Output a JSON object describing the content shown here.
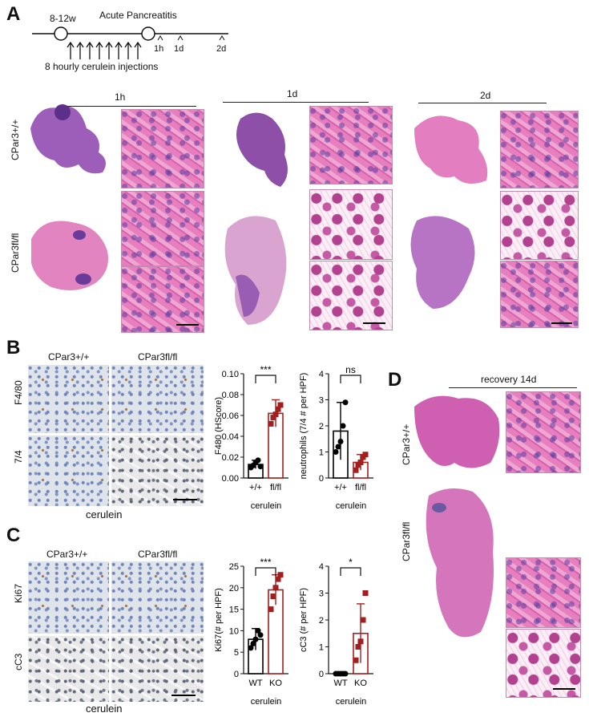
{
  "panels": {
    "a": "A",
    "b": "B",
    "c": "C",
    "d": "D"
  },
  "timeline": {
    "age": "8-12w",
    "event": "Acute Pancreatitis",
    "injections": "8 hourly cerulein injections",
    "times": [
      "1h",
      "1d",
      "2d"
    ]
  },
  "panel_a": {
    "timepoints": [
      "1h",
      "1d",
      "2d"
    ],
    "rows": [
      "CPar3+/+",
      "CPar3fl/fl"
    ]
  },
  "panel_b": {
    "columns": [
      "CPar3+/+",
      "CPar3fl/fl"
    ],
    "rows": [
      "F4/80",
      "7/4"
    ],
    "caption": "cerulein"
  },
  "panel_c": {
    "columns": [
      "CPar3+/+",
      "CPar3fl/fl"
    ],
    "rows": [
      "Ki67",
      "cC3"
    ],
    "caption": "cerulein"
  },
  "panel_d": {
    "title": "recovery 14d",
    "rows": [
      "CPar3+/+",
      "CPar3fl/fl"
    ]
  },
  "colors": {
    "control": "#000000",
    "knockout": "#a31f1f"
  },
  "chart_data": [
    {
      "type": "bar",
      "panel": "B",
      "categories": [
        "+/+",
        "fl/fl"
      ],
      "ylabel": "F480 (HScore)",
      "xlabel": "cerulein",
      "ylim": [
        0,
        0.1
      ],
      "yticks": [
        "0.00",
        "0.02",
        "0.04",
        "0.06",
        "0.08",
        "0.10"
      ],
      "values": [
        0.013,
        0.062
      ],
      "errors": [
        0.004,
        0.013
      ],
      "points": [
        [
          0.01,
          0.012,
          0.015,
          0.017,
          0.011
        ],
        [
          0.052,
          0.058,
          0.061,
          0.066,
          0.07
        ]
      ],
      "significance": "***"
    },
    {
      "type": "bar",
      "panel": "B",
      "categories": [
        "+/+",
        "fl/fl"
      ],
      "ylabel": "neutrophils (7/4 # per HPF)",
      "xlabel": "cerulein",
      "ylim": [
        0,
        4
      ],
      "yticks": [
        "0",
        "1",
        "2",
        "3",
        "4"
      ],
      "values": [
        1.8,
        0.6
      ],
      "errors": [
        1.1,
        0.3
      ],
      "points": [
        [
          1.0,
          1.2,
          1.4,
          2.0,
          2.9
        ],
        [
          0.3,
          0.5,
          0.6,
          0.8,
          0.9
        ]
      ],
      "significance": "ns"
    },
    {
      "type": "bar",
      "panel": "C",
      "categories": [
        "WT",
        "KO"
      ],
      "ylabel": "Ki67(# per HPF)",
      "xlabel": "cerulein",
      "ylim": [
        0,
        25
      ],
      "yticks": [
        "0",
        "5",
        "10",
        "15",
        "20",
        "25"
      ],
      "values": [
        8,
        19.5
      ],
      "errors": [
        2.5,
        3.5
      ],
      "points": [
        [
          6,
          7,
          8,
          10,
          9
        ],
        [
          15,
          18,
          20,
          22,
          23
        ]
      ],
      "significance": "***"
    },
    {
      "type": "bar",
      "panel": "C",
      "categories": [
        "WT",
        "KO"
      ],
      "ylabel": "cC3 (# per HPF)",
      "xlabel": "cerulein",
      "ylim": [
        0,
        4
      ],
      "yticks": [
        "0",
        "1",
        "2",
        "3",
        "4"
      ],
      "values": [
        0,
        1.5
      ],
      "errors": [
        0,
        1.1
      ],
      "points": [
        [
          0,
          0,
          0,
          0,
          0
        ],
        [
          0.5,
          1.0,
          1.2,
          2.0,
          3.0
        ]
      ],
      "significance": "*"
    }
  ]
}
